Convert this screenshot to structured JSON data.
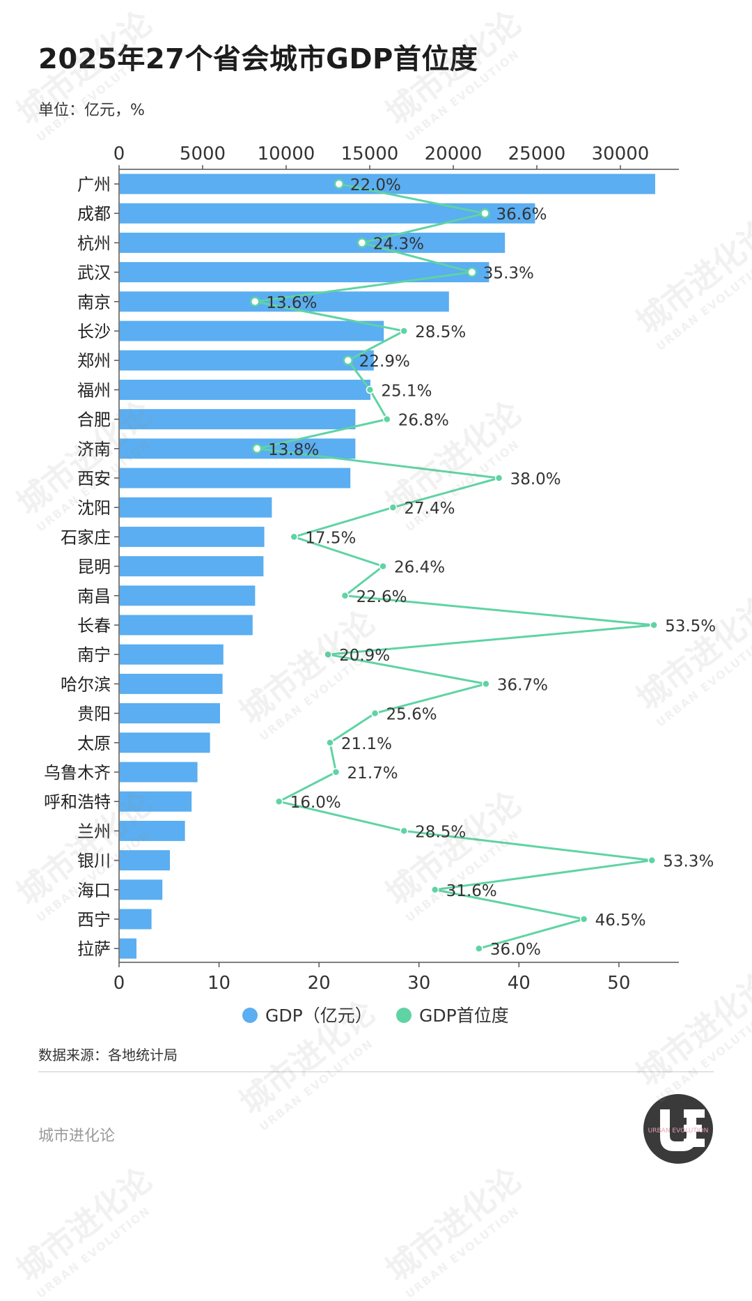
{
  "header": {
    "title": "2025年27个省会城市GDP首位度",
    "unit": "单位：亿元，%"
  },
  "footer": {
    "source": "数据来源：各地统计局",
    "brand": "城市进化论"
  },
  "logo": {
    "text": "URBAN EVOLUTION"
  },
  "watermark": {
    "text": "城市进化论",
    "subtext": "URBAN EVOLUTION"
  },
  "colors": {
    "gdp": "#5aaef1",
    "primacy": "#5fd3a4",
    "axis": "#555555"
  },
  "chart_data": {
    "type": "bar",
    "categories": [
      "广州",
      "成都",
      "杭州",
      "武汉",
      "南京",
      "长沙",
      "郑州",
      "福州",
      "合肥",
      "济南",
      "西安",
      "沈阳",
      "石家庄",
      "昆明",
      "南昌",
      "长春",
      "南宁",
      "哈尔滨",
      "贵阳",
      "太原",
      "乌鲁木齐",
      "呼和浩特",
      "兰州",
      "银川",
      "海口",
      "西宁",
      "拉萨"
    ],
    "series": [
      {
        "name": "GDP（亿元）",
        "type": "bar",
        "axis": "top",
        "values": [
          32039,
          24850,
          23050,
          22100,
          19700,
          15800,
          15200,
          15000,
          14100,
          14100,
          13800,
          9100,
          8650,
          8600,
          8100,
          7950,
          6200,
          6150,
          6000,
          5400,
          4650,
          4300,
          3900,
          3000,
          2550,
          1900,
          1000
        ]
      },
      {
        "name": "GDP首位度",
        "type": "line",
        "axis": "bottom",
        "values": [
          22.0,
          36.6,
          24.3,
          35.3,
          13.6,
          28.5,
          22.9,
          25.1,
          26.8,
          13.8,
          38.0,
          27.4,
          17.5,
          26.4,
          22.6,
          53.5,
          20.9,
          36.7,
          25.6,
          21.1,
          21.7,
          16.0,
          28.5,
          53.3,
          31.6,
          46.5,
          36.0
        ],
        "labels": [
          "22.0%",
          "36.6%",
          "24.3%",
          "35.3%",
          "13.6%",
          "28.5%",
          "22.9%",
          "25.1%",
          "26.8%",
          "13.8%",
          "38.0%",
          "27.4%",
          "17.5%",
          "26.4%",
          "22.6%",
          "53.5%",
          "20.9%",
          "36.7%",
          "25.6%",
          "21.1%",
          "21.7%",
          "16.0%",
          "28.5%",
          "53.3%",
          "31.6%",
          "46.5%",
          "36.0%"
        ]
      }
    ],
    "x_top": {
      "ticks": [
        "0",
        "5000",
        "10000",
        "15000",
        "20000",
        "25000",
        "30000"
      ],
      "range": [
        0,
        33500
      ]
    },
    "x_bottom": {
      "ticks": [
        "0",
        "10",
        "20",
        "30",
        "40",
        "50"
      ],
      "range": [
        0,
        56
      ]
    },
    "legend": {
      "position": "bottom",
      "entries": [
        "GDP（亿元）",
        "GDP首位度"
      ]
    },
    "grid": false
  }
}
